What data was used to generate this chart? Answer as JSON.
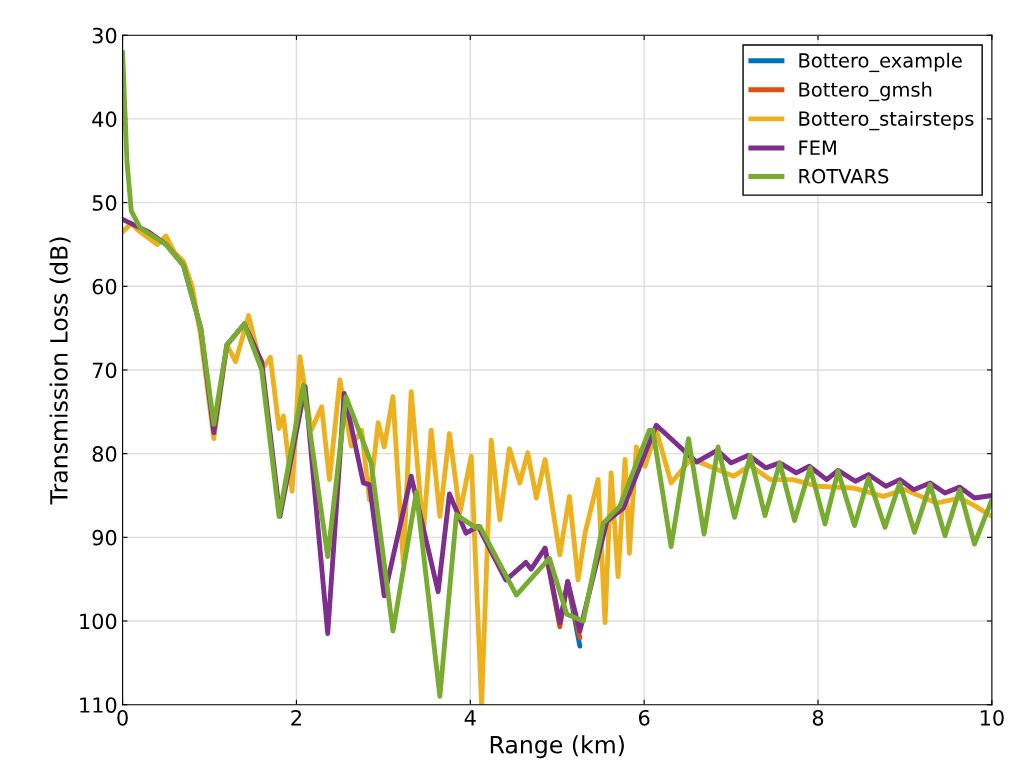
{
  "chart_data": {
    "type": "line",
    "xlabel": "Range (km)",
    "ylabel": "Transmission Loss (dB)",
    "xlim": [
      0,
      10
    ],
    "ylim": [
      110,
      30
    ],
    "xticks": [
      0,
      2,
      4,
      6,
      8,
      10
    ],
    "yticks": [
      30,
      40,
      50,
      60,
      70,
      80,
      90,
      100,
      110
    ],
    "grid": true,
    "legend": "top right",
    "line_style": "solid",
    "marker": "none",
    "series": [
      {
        "name": "Bottero_example",
        "color": "#0072bd",
        "x": [
          5.12,
          5.26
        ],
        "values": [
          95.3,
          103
        ]
      },
      {
        "name": "Bottero_gmsh",
        "color": "#d95319",
        "x": [
          4.86,
          5.03,
          5.12,
          5.26
        ],
        "values": [
          91.3,
          100.7,
          95.3,
          102
        ]
      },
      {
        "name": "Bottero_stairsteps",
        "color": "#edb120",
        "x": [
          0,
          0.1,
          0.2,
          0.4,
          0.5,
          0.6,
          0.7,
          0.8,
          0.9,
          1.05,
          1.2,
          1.3,
          1.45,
          1.6,
          1.7,
          1.8,
          1.85,
          1.95,
          2.04,
          2.17,
          2.29,
          2.38,
          2.5,
          2.63,
          2.75,
          2.84,
          2.94,
          3.01,
          3.11,
          3.23,
          3.32,
          3.46,
          3.55,
          3.65,
          3.76,
          3.88,
          4.01,
          4.13,
          4.24,
          4.34,
          4.45,
          4.57,
          4.66,
          4.76,
          4.86,
          5.03,
          5.14,
          5.24,
          5.32,
          5.47,
          5.55,
          5.62,
          5.7,
          5.78,
          5.83,
          5.91,
          6.01,
          6.14,
          6.31,
          6.54,
          7.03,
          7.22,
          7.45,
          7.71,
          8.0,
          8.4,
          8.75,
          9.0,
          9.36,
          9.63,
          9.78,
          10
        ],
        "values": [
          53.5,
          52.5,
          53.5,
          55,
          54,
          56,
          57,
          60,
          66,
          78.2,
          67,
          69,
          63.5,
          70,
          68.5,
          77,
          75.5,
          84.5,
          68.4,
          77.2,
          74.4,
          83.1,
          71.2,
          79.1,
          77.2,
          85.5,
          76.3,
          79.2,
          73.2,
          93.1,
          72.6,
          89.5,
          77.2,
          87.5,
          77.6,
          87.1,
          80.3,
          110,
          78.4,
          87.9,
          79.4,
          83.5,
          79.9,
          85.3,
          80.7,
          92.1,
          85.1,
          95.1,
          89.5,
          83.1,
          100.2,
          82.3,
          94.7,
          80.7,
          91.9,
          79.2,
          81.5,
          77.2,
          83.5,
          80.6,
          82.7,
          81.4,
          83.1,
          83.1,
          83.9,
          84.1,
          85.1,
          84.3,
          85.9,
          85.3,
          86.1,
          87.5
        ]
      },
      {
        "name": "FEM",
        "color": "#7e2f8e",
        "x": [
          0,
          0.3,
          0.5,
          0.7,
          0.9,
          1.05,
          1.2,
          1.4,
          1.6,
          1.81,
          2.1,
          2.36,
          2.55,
          2.77,
          2.84,
          3.01,
          3.32,
          3.63,
          3.76,
          3.95,
          4.09,
          4.41,
          4.64,
          4.7,
          4.86,
          5.03,
          5.12,
          5.26,
          5.57,
          5.76,
          6.14,
          6.6,
          6.84,
          7.0,
          7.2,
          7.4,
          7.56,
          7.75,
          7.9,
          8.1,
          8.23,
          8.43,
          8.58,
          8.78,
          8.94,
          9.1,
          9.29,
          9.46,
          9.63,
          9.8,
          10
        ],
        "values": [
          52,
          53.5,
          55,
          57.5,
          65,
          77.5,
          67,
          64.5,
          69,
          87.5,
          72,
          101.5,
          72.8,
          83.5,
          83.7,
          97,
          82.7,
          96.5,
          84.8,
          89.5,
          88.7,
          95.1,
          93,
          93.8,
          91.3,
          100.2,
          95.3,
          101.2,
          88.1,
          86.5,
          76.6,
          81,
          79.6,
          81.1,
          80.2,
          81.7,
          81.1,
          82.3,
          81.5,
          83.1,
          82,
          83.3,
          82.5,
          83.9,
          83.1,
          84.3,
          83.5,
          84.7,
          84,
          85.3,
          85
        ]
      },
      {
        "name": "ROTVARS",
        "color": "#77ac30",
        "x": [
          0,
          0.05,
          0.1,
          0.2,
          0.5,
          0.7,
          0.9,
          1.05,
          1.2,
          1.4,
          1.6,
          1.8,
          2.08,
          2.36,
          2.57,
          2.86,
          3.11,
          3.38,
          3.65,
          3.84,
          4.07,
          4.11,
          4.53,
          4.72,
          4.91,
          5.11,
          5.3,
          5.53,
          5.72,
          6.06,
          6.1,
          6.31,
          6.51,
          6.69,
          6.85,
          7.04,
          7.22,
          7.39,
          7.56,
          7.73,
          7.91,
          8.08,
          8.23,
          8.42,
          8.58,
          8.77,
          8.94,
          9.11,
          9.29,
          9.46,
          9.63,
          9.8,
          10
        ],
        "values": [
          32,
          45,
          51,
          53,
          55,
          57.5,
          65,
          76.5,
          67,
          64.5,
          70,
          87.5,
          71.8,
          92.3,
          73.2,
          81.1,
          101.2,
          84.6,
          109,
          87.3,
          88.9,
          88.7,
          96.9,
          94.7,
          92.5,
          99.2,
          100,
          88.3,
          86.3,
          77.2,
          77.2,
          91.1,
          78.2,
          89.6,
          79.2,
          87.6,
          80.2,
          87.4,
          81.1,
          88,
          81.7,
          88.4,
          82.1,
          88.6,
          82.9,
          88.8,
          83.5,
          89.4,
          83.7,
          89.8,
          84.3,
          90.8,
          85.5
        ]
      }
    ]
  }
}
